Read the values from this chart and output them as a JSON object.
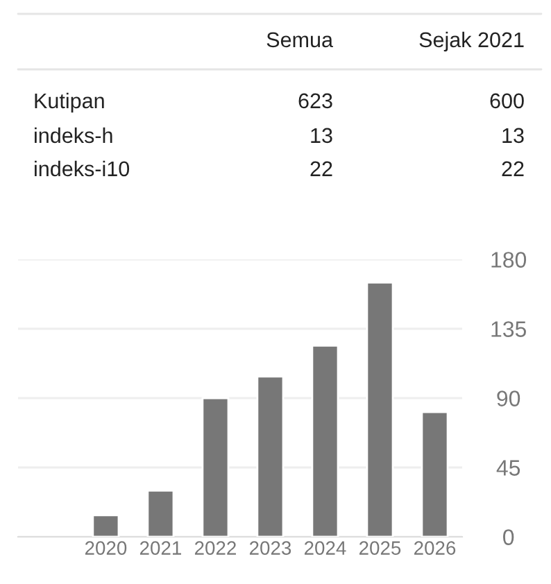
{
  "chart_data": {
    "type": "bar",
    "categories": [
      "2020",
      "2021",
      "2022",
      "2023",
      "2024",
      "2025",
      "2026"
    ],
    "values": [
      14,
      30,
      90,
      104,
      124,
      165,
      81
    ],
    "color": "#777777",
    "ylim": [
      0,
      180
    ],
    "yticks": [
      0,
      45,
      90,
      135,
      180
    ],
    "grid": "y",
    "legend": false,
    "annotations": [
      "Semua",
      "Sejak 2021",
      "Kutipan",
      "623",
      "600",
      "indeks-h",
      "13",
      "13",
      "indeks-i10",
      "22",
      "22"
    ]
  }
}
